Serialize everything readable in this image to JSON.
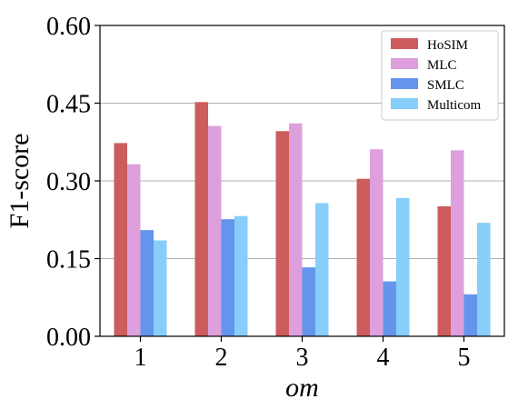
{
  "chart_data": {
    "type": "bar",
    "xlabel": "om",
    "ylabel": "F1-score",
    "categories": [
      "1",
      "2",
      "3",
      "4",
      "5"
    ],
    "ylim": [
      0,
      0.6
    ],
    "yticks": [
      0.0,
      0.15,
      0.3,
      0.45,
      0.6
    ],
    "ytick_labels": [
      "0.00",
      "0.15",
      "0.30",
      "0.45",
      "0.60"
    ],
    "grid": "horizontal",
    "legend_position": "top-right",
    "series": [
      {
        "name": "HoSIM",
        "color": "#cd5c5c",
        "values": [
          0.373,
          0.452,
          0.396,
          0.304,
          0.251
        ]
      },
      {
        "name": "MLC",
        "color": "#dda0dd",
        "values": [
          0.332,
          0.406,
          0.411,
          0.361,
          0.359
        ]
      },
      {
        "name": "SMLC",
        "color": "#6495ed",
        "values": [
          0.205,
          0.226,
          0.133,
          0.106,
          0.081
        ]
      },
      {
        "name": "Multicom",
        "color": "#87cefa",
        "values": [
          0.185,
          0.232,
          0.257,
          0.267,
          0.219
        ]
      }
    ]
  }
}
